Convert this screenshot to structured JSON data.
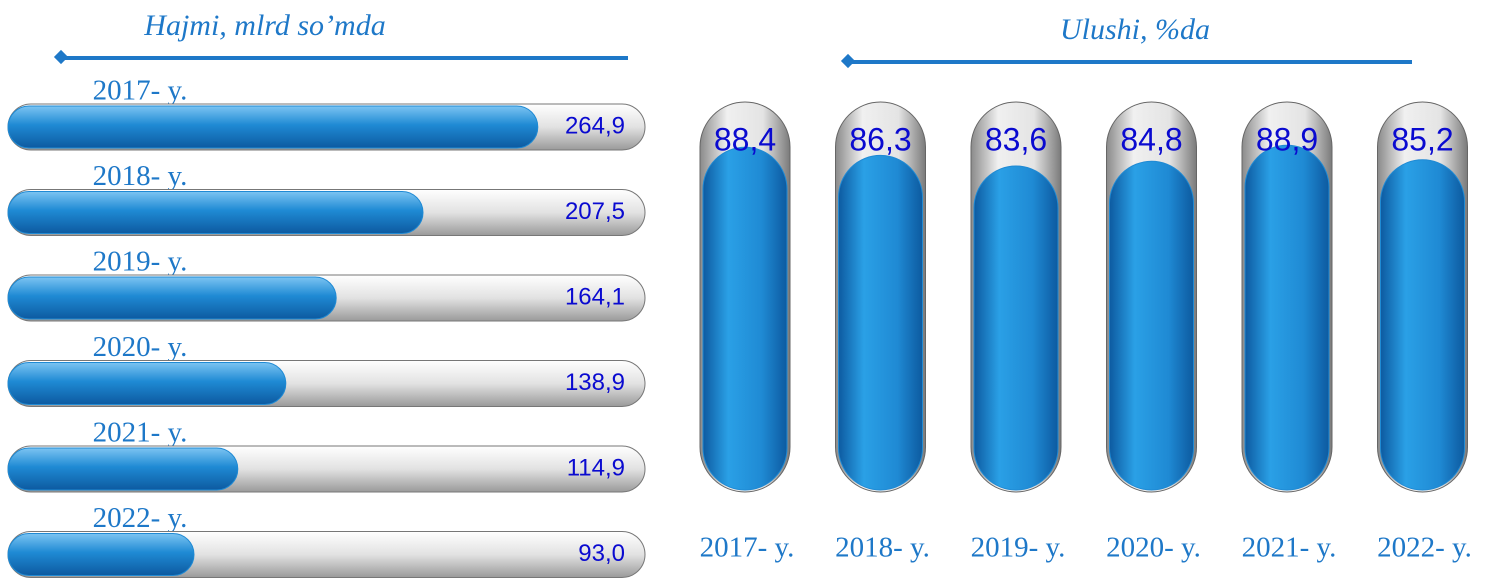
{
  "chart_data": [
    {
      "type": "hbar",
      "title": "Hajmi, mlrd so’mda",
      "categories": [
        "2017- y.",
        "2018- y.",
        "2019- y.",
        "2020- y.",
        "2021- y.",
        "2022- y."
      ],
      "values": [
        264.9,
        207.5,
        164.1,
        138.9,
        114.9,
        93.0
      ],
      "value_labels": [
        "264,9",
        "207,5",
        "164,1",
        "138,9",
        "114,9",
        "93,0"
      ],
      "color": "#1f8ad4"
    },
    {
      "type": "column",
      "title": "Ulushi, %da",
      "categories": [
        "2017- y.",
        "2018- y.",
        "2019- y.",
        "2020- y.",
        "2021- y.",
        "2022- y."
      ],
      "values": [
        88.4,
        86.3,
        83.6,
        84.8,
        88.9,
        85.2
      ],
      "value_labels": [
        "88,4",
        "86,3",
        "83,6",
        "84,8",
        "88,9",
        "85,2"
      ],
      "color": "#1f8ad4"
    }
  ]
}
